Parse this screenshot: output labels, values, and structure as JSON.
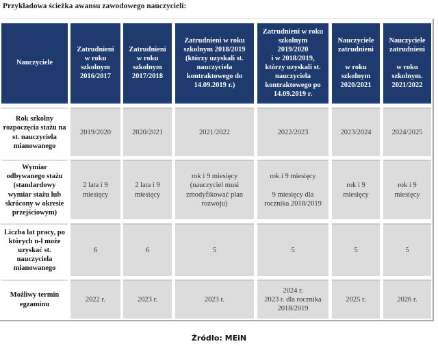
{
  "title": "Przykładowa ścieżka awansu zawodowego nauczycieli:",
  "headers": [
    "Nauczyciele",
    "Zatrudnieni\nw roku\nszkolnym\n2016/2017",
    "Zatrudnieni\nw roku\nszkolnym\n2017/2018",
    "Zatrudnieni w roku\nszkolnym 2018/2019\n(którzy uzyskali st.\nnauczyciela\nkontraktowego do\n14.09.2019 r.)",
    "Zatrudnieni w roku\nszkolnym\n2019/2020\ni w 2018/2019,\nktórzy uzyskali st.\nnauczyciela\nkontraktowego po\n14.09.2019 r.",
    "Nauczyciele\nzatrudnieni\n\nw roku\nszkolnym\n2020/2021",
    "Nauczyciele\nzatrudnieni\n\nw roku\nszkolnym.\n2021/2022"
  ],
  "rows": [
    {
      "label": "Rok szkolny\nrozpoczęcia stażu na\nst. nauczyciela\nmianowanego",
      "values": [
        "2019/2020",
        "2020/2021",
        "2021/2022",
        "2022/2023",
        "2023/2024",
        "2024/2025"
      ]
    },
    {
      "label": "Wymiar\nodbywanego stażu\n(standardowy\nwymiar stażu lub\nskrócony w okresie\nprzejściowym)",
      "values": [
        "2 lata i 9\nmiesięcy",
        "2 lata i 9\nmiesięcy",
        "rok i 9 miesięcy\n(nauczyciel musi\nzmodyfikować plan\nrozwoju)",
        "rok i 9 miesięcy\n\n9 miesięcy dla\nrocznika 2018/2019",
        "rok i 9\nmiesięcy",
        "rok i 9\nmiesięcy"
      ]
    },
    {
      "label": "Liczba lat pracy, po\nktórych n-l może\nuzyskać st.\nnauczyciela\nmianowanego",
      "values": [
        "6",
        "6",
        "5",
        "5",
        "5",
        "5"
      ]
    },
    {
      "label": "Możliwy termin\negzaminu",
      "values": [
        "2022 r.",
        "2023 r.",
        "2023 r.",
        "2024 r.\n2023 r. dla rocznika\n2018/2019",
        "2025 r.",
        "2026 r."
      ]
    }
  ],
  "source": "Źródło: MEiN",
  "colors": {
    "header_bg": "#1f3a6e",
    "cell_bg": "#dcdcdc"
  }
}
